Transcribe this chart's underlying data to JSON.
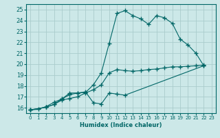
{
  "xlabel": "Humidex (Indice chaleur)",
  "bg_color": "#cce8e8",
  "grid_color": "#aacccc",
  "line_color": "#006666",
  "xlim": [
    -0.5,
    23.5
  ],
  "ylim": [
    15.5,
    25.5
  ],
  "yticks": [
    16,
    17,
    18,
    19,
    20,
    21,
    22,
    23,
    24,
    25
  ],
  "xticks": [
    0,
    1,
    2,
    3,
    4,
    5,
    6,
    7,
    8,
    9,
    10,
    11,
    12,
    13,
    14,
    15,
    16,
    17,
    18,
    19,
    20,
    21,
    22,
    23
  ],
  "line1_x": [
    0,
    1,
    2,
    3,
    4,
    5,
    6,
    7,
    8,
    9,
    10,
    11,
    12,
    13,
    14,
    15,
    16,
    17,
    18,
    19,
    20,
    21,
    22
  ],
  "line1_y": [
    15.8,
    15.85,
    16.1,
    16.5,
    16.8,
    17.2,
    17.35,
    17.4,
    18.1,
    19.2,
    21.9,
    24.65,
    24.9,
    24.45,
    24.15,
    23.65,
    24.45,
    24.25,
    23.75,
    22.3,
    21.75,
    21.0,
    19.85
  ],
  "line2_x": [
    0,
    2,
    3,
    4,
    5,
    6,
    7,
    8,
    9,
    10,
    11,
    12,
    13,
    14,
    15,
    16,
    17,
    18,
    19,
    20,
    21,
    22
  ],
  "line2_y": [
    15.8,
    16.05,
    16.3,
    16.7,
    16.85,
    17.0,
    17.35,
    17.65,
    18.1,
    19.2,
    19.5,
    19.4,
    19.35,
    19.4,
    19.5,
    19.55,
    19.65,
    19.75,
    19.75,
    19.8,
    19.85,
    19.9
  ],
  "line3_x": [
    0,
    2,
    3,
    4,
    5,
    6,
    7,
    8,
    9,
    10,
    11,
    12,
    22
  ],
  "line3_y": [
    15.8,
    16.05,
    16.3,
    16.8,
    17.35,
    17.35,
    17.45,
    16.45,
    16.35,
    17.35,
    17.25,
    17.15,
    19.85
  ]
}
